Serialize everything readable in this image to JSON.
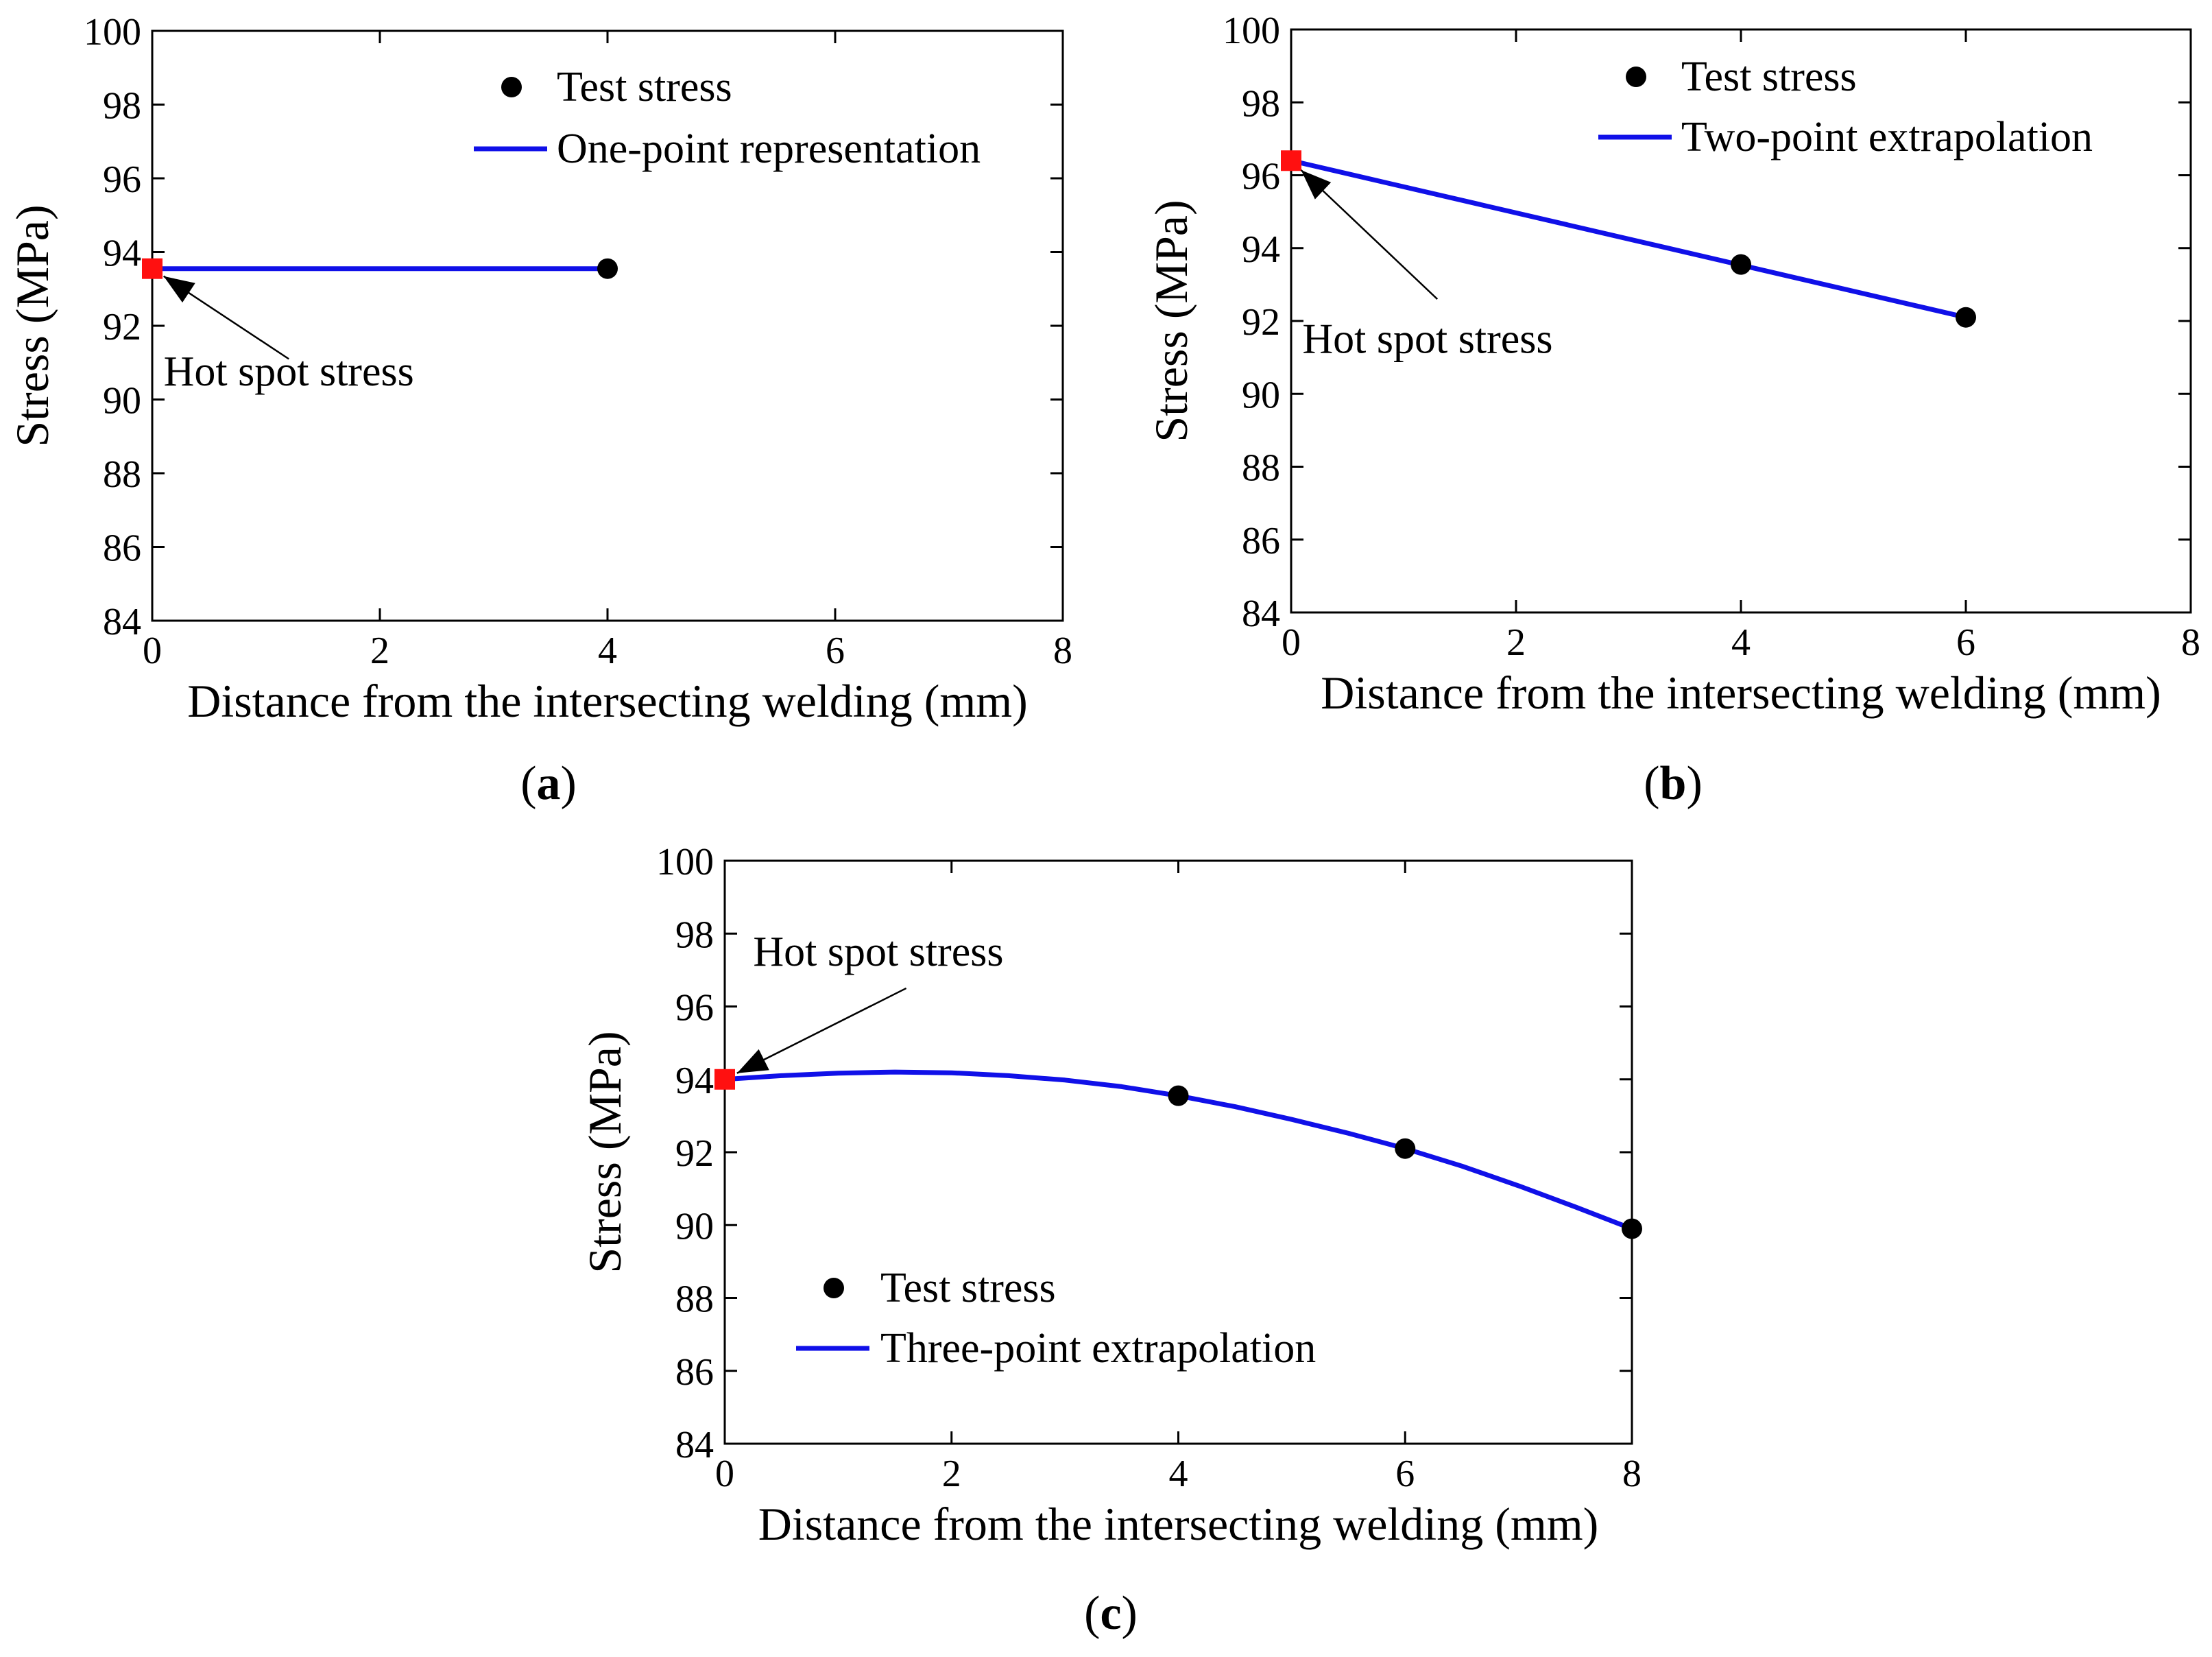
{
  "colors": {
    "line": "#1010e8",
    "hot_spot": "#ff1010",
    "test_point": "#000000",
    "axis": "#000000"
  },
  "chart_data": [
    {
      "id": "a",
      "caption_open": "(",
      "caption_letter": "a",
      "caption_close": ")",
      "type": "line",
      "xlabel": "Distance from the intersecting welding (mm)",
      "ylabel": "Stress (MPa)",
      "xlim": [
        0,
        8
      ],
      "ylim": [
        84,
        100
      ],
      "xticks": [
        "0",
        "2",
        "4",
        "6",
        "8"
      ],
      "yticks": [
        "84",
        "86",
        "88",
        "90",
        "92",
        "94",
        "96",
        "98",
        "100"
      ],
      "grid": false,
      "legend_position": "top-right",
      "legend": [
        "Test stress",
        "One-point representation"
      ],
      "test_stress": {
        "name": "Test stress",
        "x": [
          4
        ],
        "y": [
          93.55
        ]
      },
      "fit_line": {
        "name": "One-point representation",
        "x": [
          0,
          4
        ],
        "y": [
          93.55,
          93.55
        ]
      },
      "hot_spot": {
        "x": 0,
        "y": 93.55
      },
      "annotation": {
        "text": "Hot spot stress",
        "text_x": 0.1,
        "text_y": 90.75,
        "tail_x": 1.2,
        "tail_y": 91.1
      }
    },
    {
      "id": "b",
      "caption_open": "(",
      "caption_letter": "b",
      "caption_close": ")",
      "type": "line",
      "xlabel": "Distance from the intersecting welding (mm)",
      "ylabel": "Stress (MPa)",
      "xlim": [
        0,
        8
      ],
      "ylim": [
        84,
        100
      ],
      "xticks": [
        "0",
        "2",
        "4",
        "6",
        "8"
      ],
      "yticks": [
        "84",
        "86",
        "88",
        "90",
        "92",
        "94",
        "96",
        "98",
        "100"
      ],
      "grid": false,
      "legend_position": "top-right",
      "legend": [
        "Test stress",
        "Two-point extrapolation"
      ],
      "test_stress": {
        "name": "Test stress",
        "x": [
          4,
          6
        ],
        "y": [
          93.55,
          92.1
        ]
      },
      "fit_line": {
        "name": "Two-point extrapolation",
        "x": [
          0,
          6
        ],
        "y": [
          96.4,
          92.1
        ]
      },
      "hot_spot": {
        "x": 0,
        "y": 96.4
      },
      "annotation": {
        "text": "Hot spot stress",
        "text_x": 0.1,
        "text_y": 91.5,
        "tail_x": 1.3,
        "tail_y": 92.6
      }
    },
    {
      "id": "c",
      "caption_open": "(",
      "caption_letter": "c",
      "caption_close": ")",
      "type": "line",
      "xlabel": "Distance from the intersecting welding (mm)",
      "ylabel": "Stress (MPa)",
      "xlim": [
        0,
        8
      ],
      "ylim": [
        84,
        100
      ],
      "xticks": [
        "0",
        "2",
        "4",
        "6",
        "8"
      ],
      "yticks": [
        "84",
        "86",
        "88",
        "90",
        "92",
        "94",
        "96",
        "98",
        "100"
      ],
      "grid": false,
      "legend_position": "bottom-left",
      "legend": [
        "Test stress",
        "Three-point extrapolation"
      ],
      "test_stress": {
        "name": "Test stress",
        "x": [
          4,
          6,
          8
        ],
        "y": [
          93.55,
          92.1,
          89.9
        ]
      },
      "fit_line": {
        "name": "Three-point extrapolation",
        "x": [
          0,
          0.5,
          1,
          1.5,
          2,
          2.5,
          3,
          3.5,
          4,
          4.5,
          5,
          5.5,
          6,
          6.5,
          7,
          7.5,
          8
        ],
        "y": [
          94.0,
          94.1,
          94.17,
          94.2,
          94.18,
          94.1,
          93.98,
          93.8,
          93.55,
          93.25,
          92.9,
          92.52,
          92.1,
          91.62,
          91.08,
          90.5,
          89.9
        ]
      },
      "hot_spot": {
        "x": 0,
        "y": 94.0
      },
      "annotation": {
        "text": "Hot spot stress",
        "text_x": 0.25,
        "text_y": 97.5,
        "tail_x": 1.6,
        "tail_y": 96.5
      }
    }
  ]
}
